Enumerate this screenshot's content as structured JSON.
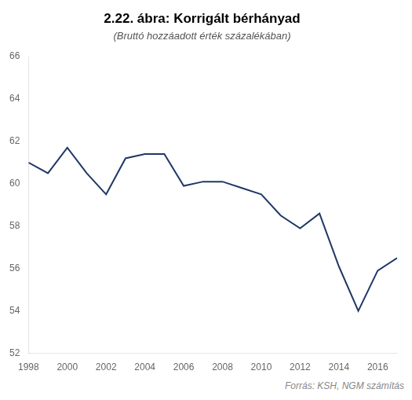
{
  "chart_data": {
    "type": "line",
    "title": "2.22. ábra: Korrigált bérhányad",
    "subtitle": "(Bruttó hozzáadott érték százalékában)",
    "source": "Forrás: KSH, NGM számítás",
    "x": [
      1998,
      1999,
      2000,
      2001,
      2002,
      2003,
      2004,
      2005,
      2006,
      2007,
      2008,
      2009,
      2010,
      2011,
      2012,
      2013,
      2014,
      2015,
      2016,
      2017
    ],
    "values": [
      61.0,
      60.5,
      61.7,
      60.5,
      59.5,
      61.2,
      61.4,
      61.4,
      59.9,
      60.1,
      60.1,
      59.8,
      59.5,
      58.5,
      57.9,
      58.6,
      56.1,
      54.0,
      55.9,
      56.5
    ],
    "color": "#1f3864",
    "xlim": [
      1998,
      2017
    ],
    "xticks": [
      1998,
      2000,
      2002,
      2004,
      2006,
      2008,
      2010,
      2012,
      2014,
      2016
    ],
    "ylim": [
      52,
      66
    ],
    "yticks": [
      52,
      54,
      56,
      58,
      60,
      62,
      64,
      66
    ],
    "grid": false
  }
}
